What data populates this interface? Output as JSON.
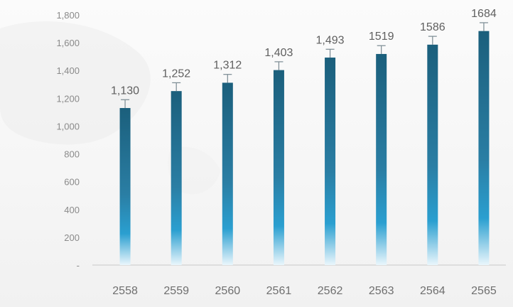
{
  "chart_data": {
    "type": "bar",
    "title": "",
    "xlabel": "",
    "ylabel": "",
    "categories": [
      "2558",
      "2559",
      "2560",
      "2561",
      "2562",
      "2563",
      "2564",
      "2565"
    ],
    "values": [
      1130,
      1252,
      1312,
      1403,
      1493,
      1519,
      1586,
      1684
    ],
    "value_labels": [
      "1,130",
      "1,252",
      "1,312",
      "1,403",
      "1,493",
      "1519",
      "1586",
      "1684"
    ],
    "yticks": [
      0,
      200,
      400,
      600,
      800,
      1000,
      1200,
      1400,
      1600,
      1800
    ],
    "ytick_labels": [
      "-",
      "200",
      "400",
      "600",
      "800",
      "1,000",
      "1,200",
      "1,400",
      "1,600",
      "1,800"
    ],
    "ylim": [
      0,
      1800
    ],
    "error_bar": 60,
    "grid": false,
    "legend": "none",
    "colors": {
      "bar_top": "#1b5f7c",
      "bar_mid": "#2a9fd0",
      "bar_bottom": "#eaf6fc",
      "axis": "#c8c8c8"
    }
  }
}
